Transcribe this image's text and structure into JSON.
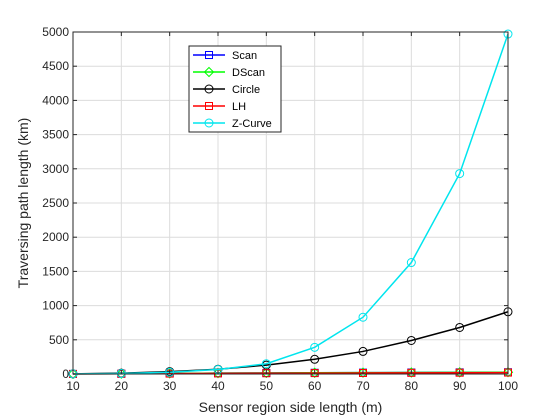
{
  "chart_data": {
    "type": "line",
    "title": "",
    "xlabel": "Sensor region side length (m)",
    "ylabel": "Traversing path length (km)",
    "x": [
      10,
      20,
      30,
      40,
      50,
      60,
      70,
      80,
      90,
      100
    ],
    "xlim": [
      10,
      100
    ],
    "ylim": [
      0,
      5000
    ],
    "xticks": [
      "10",
      "20",
      "30",
      "40",
      "50",
      "60",
      "70",
      "80",
      "90",
      "100"
    ],
    "yticks": [
      "0",
      "500",
      "1000",
      "1500",
      "2000",
      "2500",
      "3000",
      "3500",
      "4000",
      "4500",
      "5000"
    ],
    "grid": true,
    "legend_position": "top-left-inside",
    "series": [
      {
        "name": "Scan",
        "marker": "square",
        "color": "#0000ff",
        "values": [
          1,
          4,
          8,
          12,
          15,
          18,
          20,
          22,
          24,
          26
        ]
      },
      {
        "name": "DScan",
        "marker": "diamond",
        "color": "#00ff00",
        "values": [
          1,
          4,
          8,
          12,
          15,
          18,
          20,
          22,
          24,
          26
        ]
      },
      {
        "name": "Circle",
        "marker": "circle",
        "color": "#000000",
        "values": [
          2,
          12,
          35,
          70,
          130,
          215,
          330,
          490,
          680,
          910
        ]
      },
      {
        "name": "LH",
        "marker": "square",
        "color": "#ff0000",
        "values": [
          1,
          3,
          6,
          9,
          11,
          13,
          15,
          17,
          19,
          21
        ]
      },
      {
        "name": "Z-Curve",
        "marker": "circle",
        "color": "#00e5ee",
        "values": [
          1,
          8,
          25,
          65,
          150,
          390,
          830,
          1630,
          2930,
          4970
        ]
      }
    ]
  }
}
